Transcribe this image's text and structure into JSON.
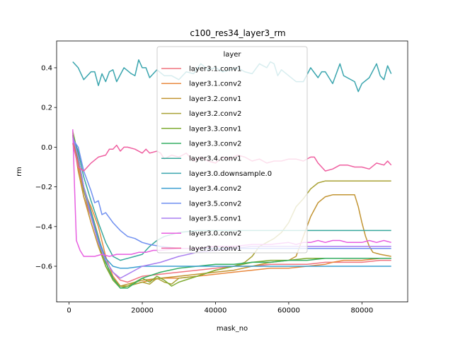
{
  "chart_data": {
    "type": "line",
    "title": "c100_res34_layer3_rm",
    "xlabel": "mask_no",
    "ylabel": "rm",
    "xlim": [
      -3400,
      92500
    ],
    "ylim": [
      -0.78,
      0.535
    ],
    "xticks": [
      0,
      20000,
      40000,
      60000,
      80000
    ],
    "xtick_labels": [
      "0",
      "20000",
      "40000",
      "60000",
      "80000"
    ],
    "yticks": [
      -0.6,
      -0.4,
      -0.2,
      0.0,
      0.2,
      0.4
    ],
    "ytick_labels": [
      "−0.6",
      "−0.4",
      "−0.2",
      "0.0",
      "0.2",
      "0.4"
    ],
    "legend_title": "layer",
    "legend_position": "upper-center",
    "series": [
      {
        "name": "layer3.1.conv1",
        "color": "#f0747f",
        "x": [
          1000,
          2500,
          4000,
          6000,
          8000,
          10000,
          12000,
          14000,
          16000,
          20000,
          25000,
          30000,
          35000,
          40000,
          45000,
          50000,
          55000,
          60000,
          65000,
          70000,
          75000,
          80000,
          85000,
          88000
        ],
        "y": [
          0.07,
          -0.1,
          -0.25,
          -0.35,
          -0.47,
          -0.57,
          -0.63,
          -0.67,
          -0.68,
          -0.65,
          -0.64,
          -0.63,
          -0.62,
          -0.61,
          -0.6,
          -0.6,
          -0.59,
          -0.59,
          -0.59,
          -0.58,
          -0.58,
          -0.58,
          -0.57,
          -0.57
        ]
      },
      {
        "name": "layer3.1.conv2",
        "color": "#e9893f",
        "x": [
          1000,
          2500,
          4000,
          6000,
          8000,
          10000,
          12000,
          14000,
          16000,
          20000,
          25000,
          30000,
          35000,
          40000,
          45000,
          50000,
          55000,
          60000,
          65000,
          70000,
          72000,
          75000,
          80000,
          85000,
          88000
        ],
        "y": [
          0.06,
          -0.08,
          -0.22,
          -0.3,
          -0.4,
          -0.55,
          -0.65,
          -0.7,
          -0.7,
          -0.68,
          -0.66,
          -0.66,
          -0.65,
          -0.64,
          -0.63,
          -0.62,
          -0.61,
          -0.61,
          -0.6,
          -0.59,
          -0.58,
          -0.57,
          -0.57,
          -0.56,
          -0.56
        ]
      },
      {
        "name": "layer3.2.conv1",
        "color": "#c29432",
        "x": [
          1000,
          2500,
          4000,
          6000,
          8000,
          10000,
          12000,
          14000,
          16000,
          20000,
          25000,
          30000,
          35000,
          40000,
          45000,
          50000,
          55000,
          60000,
          62000,
          64000,
          66000,
          68000,
          70000,
          72000,
          74000,
          76000,
          78000,
          79000,
          80000,
          81000,
          82000,
          83000,
          85000,
          88000
        ],
        "y": [
          0.06,
          -0.12,
          -0.25,
          -0.38,
          -0.5,
          -0.6,
          -0.66,
          -0.7,
          -0.69,
          -0.67,
          -0.66,
          -0.65,
          -0.64,
          -0.63,
          -0.62,
          -0.6,
          -0.58,
          -0.57,
          -0.55,
          -0.45,
          -0.35,
          -0.28,
          -0.25,
          -0.24,
          -0.24,
          -0.24,
          -0.24,
          -0.3,
          -0.38,
          -0.45,
          -0.5,
          -0.53,
          -0.54,
          -0.55
        ]
      },
      {
        "name": "layer3.2.conv2",
        "color": "#a9a235",
        "x": [
          1000,
          2500,
          4000,
          6000,
          8000,
          10000,
          12000,
          14000,
          16000,
          20000,
          22000,
          24000,
          26000,
          28000,
          30000,
          35000,
          40000,
          45000,
          48000,
          50000,
          52000,
          54000,
          56000,
          58000,
          60000,
          62000,
          64000,
          66000,
          68000,
          70000,
          75000,
          80000,
          85000,
          88000
        ],
        "y": [
          0.07,
          -0.05,
          -0.2,
          -0.32,
          -0.45,
          -0.58,
          -0.66,
          -0.7,
          -0.7,
          -0.68,
          -0.69,
          -0.66,
          -0.68,
          -0.69,
          -0.66,
          -0.65,
          -0.62,
          -0.6,
          -0.58,
          -0.55,
          -0.5,
          -0.48,
          -0.46,
          -0.43,
          -0.38,
          -0.3,
          -0.26,
          -0.21,
          -0.18,
          -0.17,
          -0.17,
          -0.17,
          -0.17,
          -0.17
        ]
      },
      {
        "name": "layer3.3.conv1",
        "color": "#7fab32",
        "x": [
          1000,
          2500,
          4000,
          6000,
          8000,
          10000,
          12000,
          14000,
          16000,
          18000,
          20000,
          22000,
          24000,
          26000,
          28000,
          30000,
          35000,
          40000,
          45000,
          50000,
          55000,
          60000,
          65000,
          70000,
          75000,
          80000,
          85000,
          88000
        ],
        "y": [
          0.08,
          -0.04,
          -0.22,
          -0.35,
          -0.48,
          -0.6,
          -0.67,
          -0.71,
          -0.7,
          -0.68,
          -0.66,
          -0.68,
          -0.65,
          -0.67,
          -0.7,
          -0.68,
          -0.65,
          -0.62,
          -0.6,
          -0.58,
          -0.57,
          -0.57,
          -0.56,
          -0.56,
          -0.56,
          -0.56,
          -0.56,
          -0.56
        ]
      },
      {
        "name": "layer3.3.conv2",
        "color": "#34ae62",
        "x": [
          1000,
          2500,
          4000,
          6000,
          8000,
          10000,
          12000,
          14000,
          16000,
          20000,
          25000,
          30000,
          35000,
          40000,
          45000,
          50000,
          55000,
          60000,
          65000,
          70000,
          75000,
          80000,
          85000,
          88000
        ],
        "y": [
          0.06,
          -0.06,
          -0.2,
          -0.33,
          -0.46,
          -0.58,
          -0.66,
          -0.71,
          -0.71,
          -0.66,
          -0.63,
          -0.61,
          -0.6,
          -0.59,
          -0.59,
          -0.58,
          -0.58,
          -0.57,
          -0.57,
          -0.56,
          -0.56,
          -0.56,
          -0.56,
          -0.56
        ]
      },
      {
        "name": "layer3.4.conv1",
        "color": "#38a89c",
        "x": [
          1000,
          2500,
          4000,
          6000,
          8000,
          10000,
          12000,
          14000,
          16000,
          18000,
          20000,
          22000,
          24000,
          26000,
          28000,
          30000,
          35000,
          40000,
          45000,
          50000,
          55000,
          60000,
          65000,
          70000,
          75000,
          80000,
          85000,
          88000
        ],
        "y": [
          0.05,
          -0.02,
          -0.15,
          -0.27,
          -0.38,
          -0.48,
          -0.55,
          -0.57,
          -0.56,
          -0.55,
          -0.54,
          -0.5,
          -0.47,
          -0.45,
          -0.44,
          -0.43,
          -0.42,
          -0.42,
          -0.42,
          -0.42,
          -0.42,
          -0.42,
          -0.42,
          -0.42,
          -0.42,
          -0.42,
          -0.42,
          -0.42
        ]
      },
      {
        "name": "layer3.0.downsample.0",
        "color": "#3aa5ae",
        "x": [
          1000,
          2500,
          4000,
          6000,
          7000,
          8000,
          9000,
          10000,
          11000,
          12000,
          13000,
          15000,
          17000,
          18000,
          19000,
          20000,
          21000,
          22000,
          24000,
          26000,
          28000,
          30000,
          32000,
          34000,
          36000,
          38000,
          40000,
          42000,
          44000,
          46000,
          48000,
          50000,
          52000,
          54000,
          55000,
          56000,
          57000,
          58000,
          60000,
          62000,
          64000,
          66000,
          68000,
          69000,
          70000,
          72000,
          74000,
          75000,
          76000,
          78000,
          79000,
          80000,
          82000,
          84000,
          85000,
          86000,
          87000,
          88000
        ],
        "y": [
          0.43,
          0.4,
          0.34,
          0.38,
          0.38,
          0.31,
          0.37,
          0.33,
          0.38,
          0.39,
          0.33,
          0.4,
          0.37,
          0.36,
          0.44,
          0.4,
          0.4,
          0.35,
          0.39,
          0.36,
          0.36,
          0.34,
          0.38,
          0.37,
          0.42,
          0.39,
          0.4,
          0.38,
          0.39,
          0.4,
          0.38,
          0.37,
          0.42,
          0.4,
          0.43,
          0.42,
          0.36,
          0.39,
          0.36,
          0.33,
          0.33,
          0.4,
          0.35,
          0.38,
          0.38,
          0.32,
          0.42,
          0.36,
          0.35,
          0.33,
          0.28,
          0.32,
          0.35,
          0.42,
          0.36,
          0.34,
          0.41,
          0.37
        ]
      },
      {
        "name": "layer3.4.conv2",
        "color": "#3b9fd0",
        "x": [
          1000,
          2500,
          4000,
          6000,
          8000,
          10000,
          12000,
          14000,
          16000,
          20000,
          25000,
          30000,
          35000,
          40000,
          45000,
          50000,
          55000,
          60000,
          65000,
          70000,
          75000,
          80000,
          85000,
          88000
        ],
        "y": [
          0.06,
          -0.05,
          -0.2,
          -0.33,
          -0.46,
          -0.56,
          -0.6,
          -0.61,
          -0.61,
          -0.6,
          -0.6,
          -0.6,
          -0.6,
          -0.6,
          -0.6,
          -0.6,
          -0.6,
          -0.6,
          -0.6,
          -0.6,
          -0.6,
          -0.6,
          -0.6,
          -0.6
        ]
      },
      {
        "name": "layer3.5.conv2",
        "color": "#6f8ff0",
        "x": [
          1000,
          2500,
          4000,
          6000,
          7000,
          8000,
          9000,
          10000,
          12000,
          14000,
          16000,
          18000,
          20000,
          22000,
          25000,
          30000,
          35000,
          40000,
          45000,
          50000,
          55000,
          60000,
          65000,
          70000,
          75000,
          80000,
          85000,
          88000
        ],
        "y": [
          0.04,
          0.0,
          -0.12,
          -0.22,
          -0.28,
          -0.27,
          -0.34,
          -0.33,
          -0.38,
          -0.42,
          -0.45,
          -0.46,
          -0.48,
          -0.49,
          -0.5,
          -0.51,
          -0.51,
          -0.51,
          -0.51,
          -0.51,
          -0.51,
          -0.51,
          -0.51,
          -0.51,
          -0.51,
          -0.51,
          -0.51,
          -0.51
        ]
      },
      {
        "name": "layer3.5.conv1",
        "color": "#a97ef0",
        "x": [
          1000,
          2500,
          4000,
          6000,
          8000,
          10000,
          12000,
          14000,
          16000,
          18000,
          20000,
          25000,
          30000,
          35000,
          40000,
          45000,
          50000,
          55000,
          60000,
          65000,
          70000,
          75000,
          80000,
          85000,
          88000
        ],
        "y": [
          0.05,
          -0.05,
          -0.2,
          -0.35,
          -0.48,
          -0.57,
          -0.63,
          -0.66,
          -0.64,
          -0.62,
          -0.6,
          -0.58,
          -0.55,
          -0.53,
          -0.52,
          -0.51,
          -0.5,
          -0.5,
          -0.5,
          -0.5,
          -0.5,
          -0.5,
          -0.5,
          -0.5,
          -0.5
        ]
      },
      {
        "name": "layer3.0.conv2",
        "color": "#e75fe0",
        "x": [
          1000,
          1500,
          2000,
          3000,
          4000,
          5000,
          7000,
          9000,
          11000,
          13000,
          15000,
          17000,
          19000,
          21000,
          23000,
          25000,
          30000,
          35000,
          40000,
          45000,
          50000,
          55000,
          60000,
          62000,
          64000,
          66000,
          68000,
          70000,
          72000,
          74000,
          76000,
          78000,
          80000,
          82000,
          84000,
          86000,
          88000
        ],
        "y": [
          0.09,
          -0.2,
          -0.47,
          -0.52,
          -0.55,
          -0.55,
          -0.55,
          -0.54,
          -0.55,
          -0.54,
          -0.54,
          -0.54,
          -0.53,
          -0.53,
          -0.52,
          -0.52,
          -0.51,
          -0.51,
          -0.5,
          -0.5,
          -0.49,
          -0.49,
          -0.48,
          -0.49,
          -0.48,
          -0.48,
          -0.47,
          -0.48,
          -0.47,
          -0.47,
          -0.48,
          -0.48,
          -0.48,
          -0.47,
          -0.48,
          -0.47,
          -0.48
        ]
      },
      {
        "name": "layer3.0.conv1",
        "color": "#ef5fa0",
        "x": [
          1000,
          2500,
          4000,
          6000,
          8000,
          10000,
          11000,
          12000,
          13000,
          14000,
          15000,
          16000,
          18000,
          20000,
          21000,
          22000,
          24000,
          25000,
          26000,
          28000,
          30000,
          32000,
          34000,
          36000,
          38000,
          40000,
          42000,
          44000,
          46000,
          48000,
          50000,
          52000,
          54000,
          56000,
          58000,
          60000,
          62000,
          64000,
          66000,
          67000,
          68000,
          70000,
          72000,
          74000,
          76000,
          78000,
          80000,
          82000,
          84000,
          86000,
          87000,
          88000
        ],
        "y": [
          0.02,
          -0.1,
          -0.12,
          -0.08,
          -0.05,
          -0.04,
          -0.01,
          -0.01,
          0.01,
          -0.02,
          0.0,
          0.0,
          -0.01,
          -0.03,
          -0.01,
          -0.03,
          -0.02,
          -0.03,
          -0.06,
          -0.04,
          -0.05,
          -0.03,
          -0.07,
          -0.05,
          -0.07,
          -0.08,
          -0.05,
          -0.06,
          -0.04,
          -0.05,
          -0.07,
          -0.06,
          -0.08,
          -0.07,
          -0.07,
          -0.06,
          -0.06,
          -0.07,
          -0.05,
          -0.05,
          -0.08,
          -0.12,
          -0.11,
          -0.09,
          -0.09,
          -0.1,
          -0.1,
          -0.11,
          -0.08,
          -0.09,
          -0.07,
          -0.09
        ]
      }
    ]
  }
}
